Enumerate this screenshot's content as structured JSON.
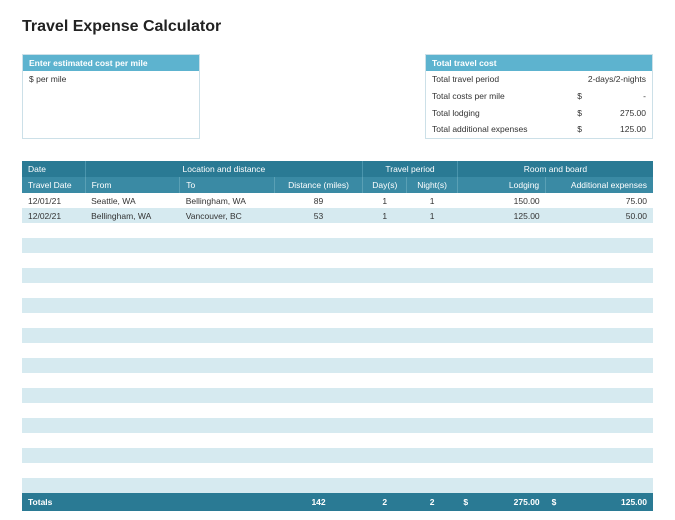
{
  "title": "Travel Expense Calculator",
  "costPerMile": {
    "header": "Enter estimated cost per mile",
    "label": "$ per mile"
  },
  "totalTravelCost": {
    "header": "Total travel cost",
    "rows": [
      {
        "label": "Total travel period",
        "currency": "",
        "value": "2-days/2-nights"
      },
      {
        "label": "Total costs per mile",
        "currency": "$",
        "value": "-"
      },
      {
        "label": "Total lodging",
        "currency": "$",
        "value": "275.00"
      },
      {
        "label": "Total additional expenses",
        "currency": "$",
        "value": "125.00"
      }
    ]
  },
  "groupHeaders": {
    "date": "Date",
    "location": "Location and distance",
    "travelPeriod": "Travel period",
    "roomBoard": "Room and board"
  },
  "columns": {
    "travelDate": "Travel Date",
    "from": "From",
    "to": "To",
    "distance": "Distance (miles)",
    "days": "Day(s)",
    "nights": "Night(s)",
    "lodging": "Lodging",
    "addExp": "Additional expenses"
  },
  "rows": [
    {
      "date": "12/01/21",
      "from": "Seattle, WA",
      "to": "Bellingham, WA",
      "distance": "89",
      "days": "1",
      "nights": "1",
      "lodging": "150.00",
      "addExp": "75.00"
    },
    {
      "date": "12/02/21",
      "from": "Bellingham, WA",
      "to": "Vancouver, BC",
      "distance": "53",
      "days": "1",
      "nights": "1",
      "lodging": "125.00",
      "addExp": "50.00"
    }
  ],
  "emptyRowCount": 18,
  "totals": {
    "label": "Totals",
    "distance": "142",
    "days": "2",
    "nights": "2",
    "lodging": "275.00",
    "addExp": "125.00",
    "currency": "$"
  },
  "colors": {
    "headerTeal": "#5db3cf",
    "darkTeal": "#2a7a94",
    "midTeal": "#3a8aa4",
    "stripe": "#d6eaf0"
  }
}
